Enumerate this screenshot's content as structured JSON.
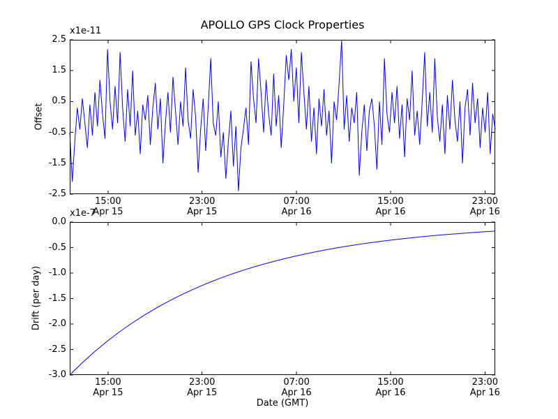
{
  "figure": {
    "title": "APOLLO GPS Clock Properties",
    "xlabel": "Date (GMT)",
    "background_color": "#ffffff",
    "line_color": "#0000ff",
    "axes_color": "#000000"
  },
  "chart_data": [
    {
      "type": "line",
      "name": "offset",
      "title": "APOLLO GPS Clock Properties",
      "ylabel": "Offset",
      "y_scale_label": "x1e-11",
      "y_units": "1e-11",
      "ylim": [
        -2.5,
        2.5
      ],
      "ytick_labels": [
        "2.5",
        "1.5",
        "0.5",
        "-0.5",
        "-1.5",
        "-2.5"
      ],
      "grid": false,
      "xticks": [
        {
          "time": "15:00",
          "date": "Apr 15",
          "frac": 0.09
        },
        {
          "time": "23:00",
          "date": "Apr 15",
          "frac": 0.311
        },
        {
          "time": "07:00",
          "date": "Apr 16",
          "frac": 0.533
        },
        {
          "time": "15:00",
          "date": "Apr 16",
          "frac": 0.754
        },
        {
          "time": "23:00",
          "date": "Apr 16",
          "frac": 0.976
        }
      ],
      "values": [
        -0.5,
        -2.1,
        -0.8,
        0.3,
        -0.4,
        0.6,
        -0.2,
        -1.0,
        0.4,
        -0.6,
        0.8,
        -0.3,
        1.2,
        0.1,
        -0.7,
        2.2,
        0.5,
        -0.4,
        1.0,
        -0.2,
        2.1,
        0.3,
        -0.8,
        0.9,
        -0.3,
        1.5,
        -0.6,
        0.2,
        -1.2,
        0.4,
        -0.1,
        0.7,
        -0.9,
        0.3,
        1.1,
        -0.4,
        0.6,
        -1.5,
        -0.2,
        0.8,
        -0.5,
        1.3,
        0.2,
        -0.9,
        0.5,
        -0.3,
        1.6,
        -0.1,
        -0.7,
        0.9,
        0.0,
        -1.8,
        -0.4,
        0.6,
        -1.1,
        0.3,
        1.9,
        -0.2,
        -0.6,
        0.5,
        -1.3,
        -0.5,
        -2.0,
        -0.8,
        0.2,
        -1.6,
        -0.3,
        -2.4,
        -1.0,
        -0.4,
        0.3,
        -0.9,
        1.8,
        0.6,
        -0.2,
        1.9,
        0.8,
        -0.5,
        1.2,
        0.1,
        -0.6,
        1.4,
        -0.3,
        0.7,
        -1.0,
        0.4,
        2.0,
        1.2,
        2.2,
        0.5,
        1.6,
        -0.2,
        2.1,
        0.8,
        -0.4,
        1.0,
        -0.8,
        0.3,
        -1.2,
        0.6,
        -0.3,
        0.9,
        -0.6,
        0.2,
        -1.5,
        0.5,
        -0.1,
        1.1,
        2.5,
        -0.4,
        0.7,
        -0.8,
        0.3,
        -0.2,
        0.8,
        -1.9,
        -0.5,
        0.4,
        -1.1,
        0.2,
        0.6,
        -0.3,
        -1.7,
        0.5,
        -0.9,
        1.9,
        0.1,
        -0.5,
        0.8,
        -0.2,
        1.0,
        -0.7,
        0.4,
        -1.3,
        0.6,
        -0.1,
        1.5,
        -0.6,
        0.2,
        -0.9,
        0.5,
        2.1,
        -0.3,
        0.8,
        -0.5,
        1.9,
        0.0,
        -0.8,
        0.4,
        -1.2,
        0.7,
        -0.4,
        1.2,
        -0.1,
        -0.8,
        0.5,
        -1.5,
        0.3,
        0.9,
        -0.6,
        1.1,
        -0.2,
        0.6,
        -1.0,
        0.3,
        -0.5,
        0.8,
        -1.2,
        0.1,
        -0.4
      ]
    },
    {
      "type": "line",
      "name": "drift",
      "ylabel": "Drift (per day)",
      "xlabel": "Date (GMT)",
      "y_scale_label": "x1e-7",
      "y_units": "1e-7",
      "ylim": [
        -3.0,
        0.0
      ],
      "ytick_labels": [
        "0.0",
        "-0.5",
        "-1.0",
        "-1.5",
        "-2.0",
        "-2.5",
        "-3.0"
      ],
      "grid": false,
      "xticks": [
        {
          "time": "15:00",
          "date": "Apr 15",
          "frac": 0.09
        },
        {
          "time": "23:00",
          "date": "Apr 15",
          "frac": 0.311
        },
        {
          "time": "07:00",
          "date": "Apr 16",
          "frac": 0.533
        },
        {
          "time": "15:00",
          "date": "Apr 16",
          "frac": 0.754
        },
        {
          "time": "23:00",
          "date": "Apr 16",
          "frac": 0.976
        }
      ],
      "x_hours": [
        0,
        1,
        2,
        3,
        4,
        5,
        6,
        7,
        8,
        9,
        10,
        11,
        12,
        13,
        14,
        15,
        16,
        17,
        18,
        19,
        20,
        21,
        22,
        23,
        24,
        25,
        26,
        27,
        28,
        29,
        30,
        31,
        32,
        33,
        34
      ],
      "values": [
        -3.0,
        -2.76,
        -2.539,
        -2.336,
        -2.149,
        -1.978,
        -1.82,
        -1.674,
        -1.54,
        -1.417,
        -1.304,
        -1.2,
        -1.104,
        -1.015,
        -0.934,
        -0.859,
        -0.791,
        -0.728,
        -0.669,
        -0.616,
        -0.567,
        -0.521,
        -0.48,
        -0.441,
        -0.406,
        -0.374,
        -0.344,
        -0.316,
        -0.291,
        -0.268,
        -0.246,
        -0.227,
        -0.209,
        -0.192,
        -0.177
      ]
    }
  ]
}
